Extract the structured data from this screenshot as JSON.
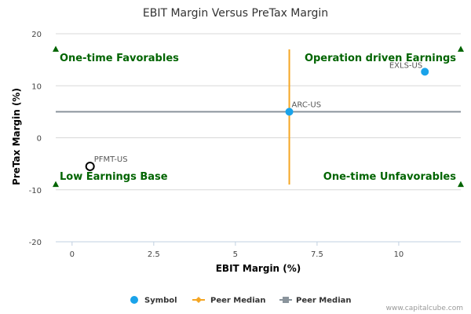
{
  "chart_data": {
    "type": "scatter",
    "title": "EBIT Margin Versus PreTax Margin",
    "xlabel": "EBIT Margin (%)",
    "ylabel": "PreTax Margin (%)",
    "xlim": [
      -0.5,
      11.9
    ],
    "ylim": [
      -20,
      20
    ],
    "xticks": [
      0,
      2.5,
      5,
      7.5,
      10
    ],
    "xtick_labels": [
      "0",
      "2.5",
      "5",
      "7.5",
      "10"
    ],
    "yticks": [
      20,
      10,
      0,
      -10,
      -20
    ],
    "ytick_labels": [
      "20",
      "10",
      "0",
      "-10",
      "-20"
    ],
    "grid": "horizontal",
    "points": [
      {
        "name": "EXLS-US",
        "x": 10.8,
        "y": 12.7,
        "style": "filled",
        "color": "#1aa3ea"
      },
      {
        "name": "ARC-US",
        "x": 6.65,
        "y": 5.0,
        "style": "filled",
        "color": "#1aa3ea"
      },
      {
        "name": "PFMT-US",
        "x": 0.55,
        "y": -5.5,
        "style": "hollow",
        "color": "#000000"
      }
    ],
    "peer_median_x": {
      "value": 6.65,
      "y_from": -9,
      "y_to": 17,
      "color": "#f5a623"
    },
    "peer_median_y": {
      "value": 5.0,
      "x_from": -0.5,
      "x_to": 11.9,
      "color": "#8a949c"
    },
    "quadrant_markers": [
      {
        "x": -0.5,
        "y": 17
      },
      {
        "x": 11.9,
        "y": 17
      },
      {
        "x": -0.5,
        "y": -9
      },
      {
        "x": 11.9,
        "y": -9
      }
    ],
    "quadrant_labels": {
      "top_left": "One-time Favorables",
      "top_right": "Operation driven Earnings",
      "bottom_left": "Low Earnings Base",
      "bottom_right": "One-time Unfavorables"
    },
    "legend": [
      {
        "label": "Symbol",
        "marker": "circle",
        "color": "#1aa3ea"
      },
      {
        "label": "Peer Median",
        "marker": "diamond-line",
        "color": "#f5a623"
      },
      {
        "label": "Peer Median",
        "marker": "square-line",
        "color": "#8a949c"
      }
    ],
    "legend_position": "bottom-center",
    "quadrant_color": "#006400"
  },
  "credit": "www.capitalcube.com"
}
